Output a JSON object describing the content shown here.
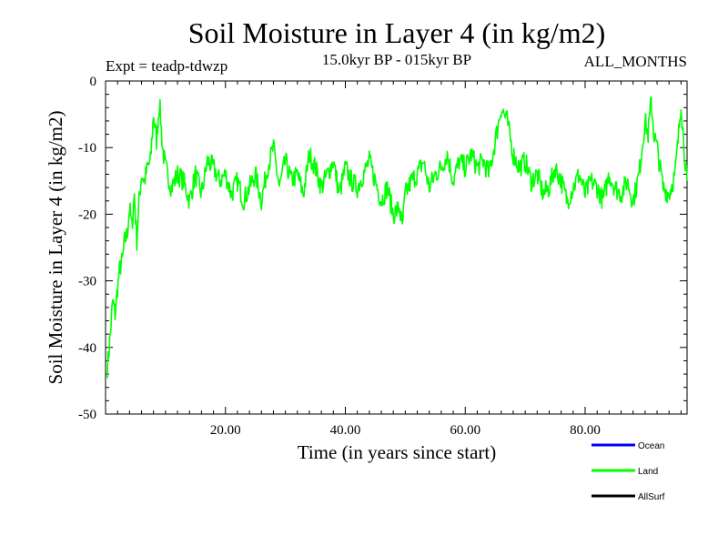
{
  "chart_data": {
    "type": "line",
    "title": "Soil Moisture in Layer 4 (in kg/m2)",
    "subtitle": "15.0kyr BP - 015kyr BP",
    "expt_label": "Expt = teadp-tdwzp",
    "months_label": "ALL_MONTHS",
    "xlabel": "Time (in years since start)",
    "ylabel": "Soil Moisture in Layer 4 (in kg/m2)",
    "xlim": [
      0,
      97
    ],
    "ylim": [
      -50,
      0
    ],
    "x_ticks": [
      20,
      40,
      60,
      80
    ],
    "x_tick_labels": [
      "20.00",
      "40.00",
      "60.00",
      "80.00"
    ],
    "y_ticks": [
      0,
      -10,
      -20,
      -30,
      -40,
      -50
    ],
    "y_tick_labels": [
      "0",
      "-10",
      "-20",
      "-30",
      "-40",
      "-50"
    ],
    "legend": [
      {
        "name": "Ocean",
        "color": "#0000ff"
      },
      {
        "name": "Land",
        "color": "#00ff00"
      },
      {
        "name": "AllSurf",
        "color": "#000000"
      }
    ],
    "series": [
      {
        "name": "Land",
        "color": "#00ff00",
        "x": [
          0.3,
          0.8,
          1.2,
          1.6,
          2.0,
          2.4,
          2.8,
          3.2,
          3.6,
          4.0,
          4.4,
          4.8,
          5.2,
          5.6,
          6.0,
          6.5,
          7.0,
          7.5,
          8.0,
          8.5,
          9.0,
          9.5,
          10.0,
          11.0,
          12.0,
          13.0,
          14.0,
          15.0,
          16.0,
          17.0,
          18.0,
          19.0,
          20.0,
          21.0,
          22.0,
          23.0,
          24.0,
          25.0,
          26.0,
          27.0,
          28.0,
          29.0,
          30.0,
          31.0,
          32.0,
          33.0,
          34.0,
          35.0,
          36.0,
          37.0,
          38.0,
          39.0,
          40.0,
          41.0,
          42.0,
          43.0,
          44.0,
          45.0,
          46.0,
          47.0,
          48.0,
          49.0,
          49.5,
          50.0,
          51.0,
          52.0,
          53.0,
          54.0,
          55.0,
          56.0,
          57.0,
          58.0,
          59.0,
          60.0,
          61.0,
          62.0,
          63.0,
          64.0,
          65.0,
          66.0,
          67.0,
          68.0,
          69.0,
          70.0,
          71.0,
          72.0,
          73.0,
          74.0,
          75.0,
          76.0,
          77.0,
          78.0,
          79.0,
          80.0,
          81.0,
          82.0,
          83.0,
          84.0,
          85.0,
          86.0,
          87.0,
          88.0,
          89.0,
          89.5,
          90.0,
          90.5,
          91.0,
          91.5,
          92.0,
          93.0,
          94.0,
          95.0,
          95.5,
          96.0,
          96.5,
          97.0
        ],
        "values": [
          -43,
          -38,
          -33,
          -35,
          -31,
          -28,
          -27,
          -24,
          -23,
          -19,
          -22,
          -17,
          -24,
          -18,
          -14,
          -15,
          -13,
          -12,
          -5,
          -9,
          -3,
          -10,
          -13,
          -16,
          -14,
          -15,
          -18,
          -14,
          -17,
          -12,
          -13,
          -15,
          -14,
          -17,
          -15,
          -18,
          -16,
          -14,
          -18,
          -13,
          -10,
          -16,
          -12,
          -15,
          -14,
          -17,
          -11,
          -13,
          -16,
          -14,
          -12,
          -17,
          -13,
          -15,
          -16,
          -14,
          -12,
          -15,
          -18,
          -16,
          -20,
          -19,
          -22,
          -17,
          -15,
          -14,
          -12,
          -16,
          -14,
          -13,
          -11,
          -15,
          -12,
          -13,
          -11,
          -13,
          -12,
          -14,
          -9,
          -4,
          -6,
          -11,
          -13,
          -12,
          -15,
          -14,
          -17,
          -16,
          -13,
          -15,
          -18,
          -16,
          -14,
          -17,
          -15,
          -16,
          -18,
          -14,
          -16,
          -17,
          -15,
          -18,
          -14,
          -10,
          -6,
          -8,
          -3,
          -8,
          -10,
          -16,
          -17,
          -14,
          -9,
          -3,
          -10,
          -15
        ]
      }
    ]
  }
}
